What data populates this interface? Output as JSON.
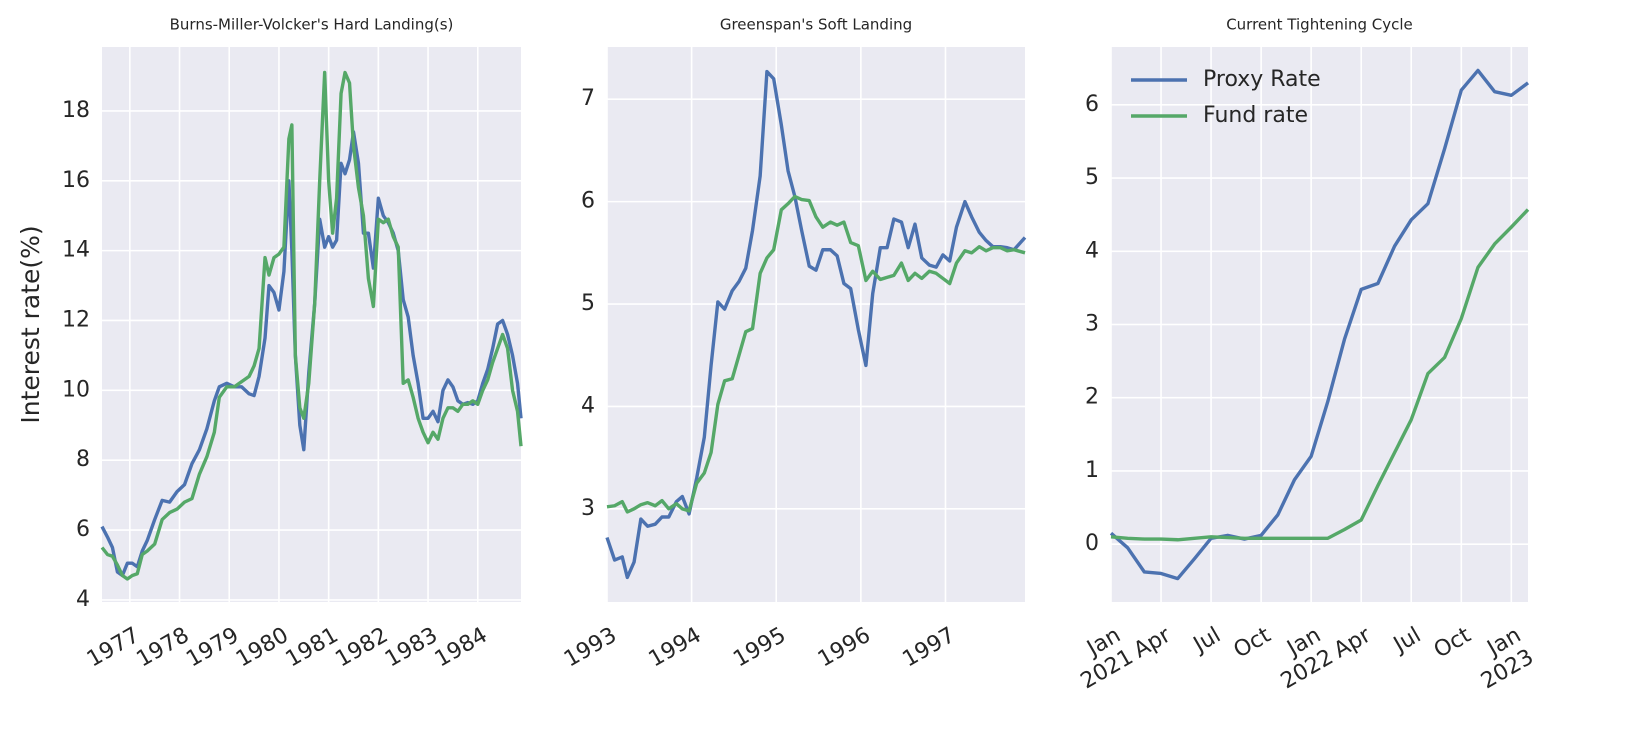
{
  "chart_data": [
    {
      "type": "line",
      "title": "Burns-Miller-Volcker's Hard Landing(s)",
      "y_label": "Interest rate(%)",
      "grid": true,
      "xlim": [
        1976.44,
        1984.87
      ],
      "xticks": [
        1977,
        1978,
        1979,
        1980,
        1981,
        1982,
        1983,
        1984
      ],
      "ylim": [
        3.94,
        19.83
      ],
      "yticks": [
        4,
        6,
        8,
        10,
        12,
        14,
        16,
        18
      ],
      "x": [
        1976.44,
        1976.55,
        1976.65,
        1976.75,
        1976.85,
        1976.95,
        1977.05,
        1977.15,
        1977.25,
        1977.35,
        1977.5,
        1977.65,
        1977.8,
        1977.95,
        1978.1,
        1978.25,
        1978.4,
        1978.55,
        1978.7,
        1978.8,
        1978.95,
        1979.1,
        1979.25,
        1979.4,
        1979.5,
        1979.6,
        1979.72,
        1979.8,
        1979.9,
        1980.0,
        1980.1,
        1980.2,
        1980.26,
        1980.33,
        1980.42,
        1980.5,
        1980.6,
        1980.72,
        1980.82,
        1980.92,
        1981.0,
        1981.08,
        1981.16,
        1981.25,
        1981.33,
        1981.42,
        1981.5,
        1981.6,
        1981.7,
        1981.8,
        1981.9,
        1982.0,
        1982.1,
        1982.2,
        1982.3,
        1982.4,
        1982.5,
        1982.6,
        1982.7,
        1982.8,
        1982.9,
        1983.0,
        1983.1,
        1983.2,
        1983.3,
        1983.4,
        1983.5,
        1983.6,
        1983.7,
        1983.8,
        1983.9,
        1984.0,
        1984.1,
        1984.2,
        1984.3,
        1984.4,
        1984.5,
        1984.6,
        1984.7,
        1984.8,
        1984.87
      ],
      "series": [
        {
          "color": "#4c72b0",
          "values": [
            6.1,
            5.8,
            5.5,
            4.8,
            4.7,
            5.05,
            5.05,
            4.95,
            5.4,
            5.7,
            6.3,
            6.85,
            6.8,
            7.1,
            7.3,
            7.9,
            8.3,
            8.9,
            9.7,
            10.1,
            10.2,
            10.1,
            10.1,
            9.9,
            9.85,
            10.4,
            11.5,
            13.0,
            12.8,
            12.3,
            13.4,
            16.0,
            14.0,
            11.0,
            9.0,
            8.3,
            10.5,
            12.5,
            14.9,
            14.1,
            14.4,
            14.1,
            14.3,
            16.5,
            16.2,
            16.6,
            17.4,
            16.5,
            14.5,
            14.5,
            13.5,
            15.5,
            15.0,
            14.8,
            14.5,
            14.0,
            12.6,
            12.1,
            11.0,
            10.2,
            9.2,
            9.2,
            9.4,
            9.1,
            10.0,
            10.3,
            10.1,
            9.7,
            9.6,
            9.65,
            9.6,
            9.7,
            10.2,
            10.6,
            11.2,
            11.9,
            12.0,
            11.6,
            11.0,
            10.2,
            9.2
          ]
        },
        {
          "color": "#55a868",
          "values": [
            5.5,
            5.3,
            5.25,
            5.0,
            4.7,
            4.6,
            4.7,
            4.75,
            5.3,
            5.4,
            5.6,
            6.3,
            6.5,
            6.6,
            6.8,
            6.9,
            7.6,
            8.1,
            8.8,
            9.8,
            10.1,
            10.1,
            10.25,
            10.4,
            10.7,
            11.2,
            13.8,
            13.3,
            13.8,
            13.9,
            14.1,
            17.2,
            17.6,
            11.0,
            9.5,
            9.2,
            10.2,
            12.5,
            16.0,
            19.1,
            16.0,
            14.5,
            15.5,
            18.5,
            19.1,
            18.8,
            17.0,
            15.8,
            15.0,
            13.2,
            12.4,
            14.9,
            14.8,
            14.9,
            14.4,
            14.1,
            10.2,
            10.3,
            9.8,
            9.2,
            8.8,
            8.5,
            8.8,
            8.6,
            9.2,
            9.5,
            9.5,
            9.4,
            9.6,
            9.6,
            9.7,
            9.6,
            10.0,
            10.3,
            10.8,
            11.2,
            11.6,
            11.2,
            10.0,
            9.4,
            8.4
          ]
        }
      ]
    },
    {
      "type": "line",
      "title": "Greenspan's Soft Landing",
      "grid": true,
      "xlim": [
        1993,
        1997.94
      ],
      "xticks": [
        1993,
        1994,
        1995,
        1996,
        1997
      ],
      "ylim": [
        2.09,
        7.51
      ],
      "yticks": [
        3,
        4,
        5,
        6,
        7
      ],
      "x": [
        1993.0,
        1993.09,
        1993.18,
        1993.24,
        1993.32,
        1993.4,
        1993.48,
        1993.57,
        1993.65,
        1993.73,
        1993.82,
        1993.89,
        1993.97,
        1994.06,
        1994.15,
        1994.23,
        1994.31,
        1994.39,
        1994.48,
        1994.56,
        1994.64,
        1994.72,
        1994.81,
        1994.89,
        1994.97,
        1995.06,
        1995.14,
        1995.22,
        1995.3,
        1995.39,
        1995.47,
        1995.55,
        1995.64,
        1995.72,
        1995.8,
        1995.88,
        1995.97,
        1996.06,
        1996.14,
        1996.23,
        1996.31,
        1996.39,
        1996.48,
        1996.56,
        1996.64,
        1996.72,
        1996.81,
        1996.89,
        1996.97,
        1997.05,
        1997.13,
        1997.23,
        1997.31,
        1997.4,
        1997.48,
        1997.56,
        1997.65,
        1997.73,
        1997.81,
        1997.94
      ],
      "series": [
        {
          "color": "#4c72b0",
          "values": [
            2.72,
            2.5,
            2.53,
            2.33,
            2.48,
            2.9,
            2.83,
            2.85,
            2.92,
            2.92,
            3.07,
            3.12,
            2.95,
            3.3,
            3.7,
            4.4,
            5.02,
            4.95,
            5.13,
            5.22,
            5.35,
            5.72,
            6.25,
            7.27,
            7.2,
            6.75,
            6.3,
            6.05,
            5.72,
            5.37,
            5.33,
            5.53,
            5.53,
            5.47,
            5.2,
            5.15,
            4.75,
            4.4,
            5.1,
            5.55,
            5.55,
            5.83,
            5.8,
            5.55,
            5.78,
            5.45,
            5.38,
            5.36,
            5.48,
            5.42,
            5.75,
            6.0,
            5.85,
            5.7,
            5.62,
            5.56,
            5.56,
            5.55,
            5.53,
            5.65
          ]
        },
        {
          "color": "#55a868",
          "values": [
            3.02,
            3.03,
            3.07,
            2.97,
            3.0,
            3.04,
            3.06,
            3.03,
            3.08,
            3.0,
            3.05,
            3.0,
            2.98,
            3.25,
            3.35,
            3.55,
            4.02,
            4.25,
            4.27,
            4.5,
            4.73,
            4.76,
            5.3,
            5.45,
            5.53,
            5.92,
            5.98,
            6.05,
            6.02,
            6.01,
            5.85,
            5.75,
            5.8,
            5.77,
            5.8,
            5.6,
            5.57,
            5.23,
            5.32,
            5.24,
            5.26,
            5.28,
            5.4,
            5.23,
            5.3,
            5.25,
            5.32,
            5.3,
            5.25,
            5.2,
            5.4,
            5.52,
            5.5,
            5.56,
            5.52,
            5.55,
            5.55,
            5.52,
            5.53,
            5.5
          ]
        }
      ]
    },
    {
      "type": "line",
      "title": "Current Tightening Cycle",
      "grid": true,
      "legend": "upper left",
      "xlim": [
        "2021-01",
        "2023-02"
      ],
      "xticks": [
        {
          "value": "2021-01",
          "label": "Jan\n2021"
        },
        {
          "value": "2021-04",
          "label": "Apr"
        },
        {
          "value": "2021-07",
          "label": "Jul"
        },
        {
          "value": "2021-10",
          "label": "Oct"
        },
        {
          "value": "2022-01",
          "label": "Jan\n2022"
        },
        {
          "value": "2022-04",
          "label": "Apr"
        },
        {
          "value": "2022-07",
          "label": "Jul"
        },
        {
          "value": "2022-10",
          "label": "Oct"
        },
        {
          "value": "2023-01",
          "label": "Jan\n2023"
        }
      ],
      "ylim": [
        -0.79,
        6.79
      ],
      "yticks": [
        0,
        1,
        2,
        3,
        4,
        5,
        6
      ],
      "x": [
        "2021-01",
        "2021-02",
        "2021-03",
        "2021-04",
        "2021-05",
        "2021-06",
        "2021-07",
        "2021-08",
        "2021-09",
        "2021-10",
        "2021-11",
        "2021-12",
        "2022-01",
        "2022-02",
        "2022-03",
        "2022-04",
        "2022-05",
        "2022-06",
        "2022-07",
        "2022-08",
        "2022-09",
        "2022-10",
        "2022-11",
        "2022-12",
        "2023-01",
        "2023-02"
      ],
      "series": [
        {
          "name": "Proxy Rate",
          "color": "#4c72b0",
          "values": [
            0.15,
            -0.05,
            -0.38,
            -0.4,
            -0.47,
            -0.2,
            0.08,
            0.12,
            0.07,
            0.12,
            0.4,
            0.88,
            1.2,
            1.95,
            2.8,
            3.48,
            3.56,
            4.07,
            4.43,
            4.65,
            5.4,
            6.2,
            6.47,
            6.18,
            6.13,
            6.3
          ]
        },
        {
          "name": "Fund rate",
          "color": "#55a868",
          "values": [
            0.1,
            0.08,
            0.07,
            0.07,
            0.06,
            0.08,
            0.1,
            0.09,
            0.08,
            0.08,
            0.08,
            0.08,
            0.08,
            0.08,
            0.2,
            0.33,
            0.8,
            1.25,
            1.7,
            2.33,
            2.55,
            3.08,
            3.78,
            4.1,
            4.33,
            4.57
          ]
        }
      ]
    }
  ]
}
